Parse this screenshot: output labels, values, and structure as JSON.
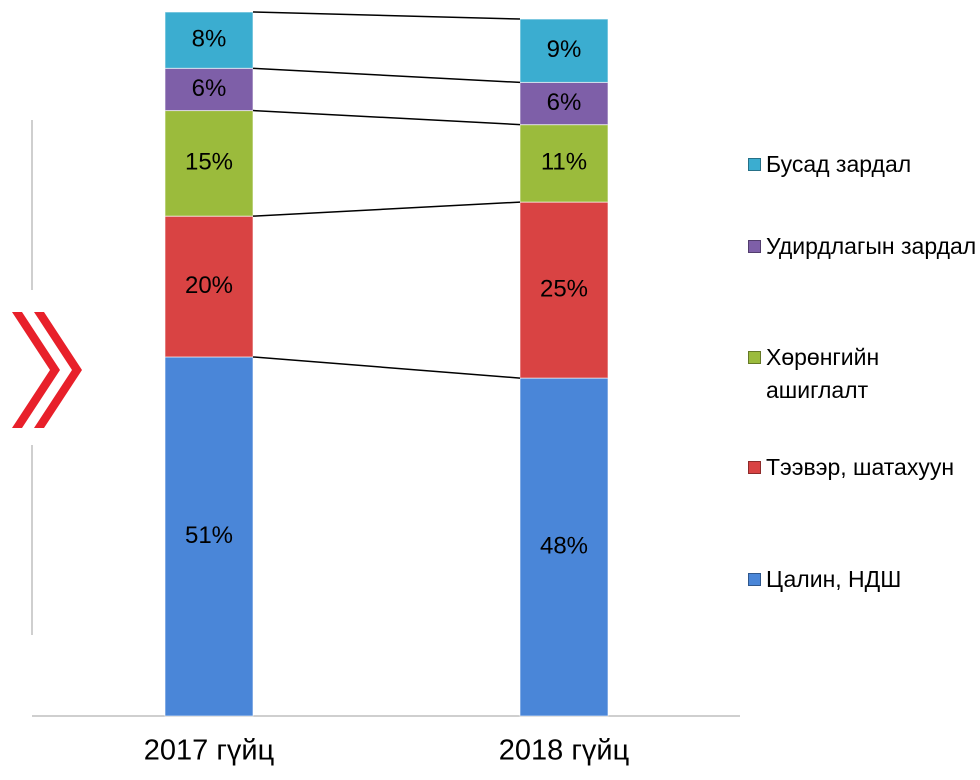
{
  "chart_data": {
    "type": "bar",
    "stacked": true,
    "categories": [
      "2017 гүйц",
      "2018 гүйц"
    ],
    "ylim": [
      0,
      100
    ],
    "series": [
      {
        "name": "Цалин, НДШ",
        "color": "#4a86d8",
        "values": [
          51,
          48
        ],
        "value_labels": [
          "51%",
          "48%"
        ]
      },
      {
        "name": "Тээвэр, шатахуун",
        "color": "#d94343",
        "values": [
          20,
          25
        ],
        "value_labels": [
          "20%",
          "25%"
        ]
      },
      {
        "name": "Хөрөнгийн ашиглалт",
        "color": "#9bbb3c",
        "values": [
          15,
          11
        ],
        "value_labels": [
          "15%",
          "11%"
        ]
      },
      {
        "name": "Удирдлагын зардал",
        "color": "#7e5fa8",
        "values": [
          6,
          6
        ],
        "value_labels": [
          "6%",
          "6%"
        ]
      },
      {
        "name": "Бусад зардал",
        "color": "#3badd0",
        "values": [
          8,
          9
        ],
        "value_labels": [
          "8%",
          "9%"
        ]
      }
    ]
  }
}
